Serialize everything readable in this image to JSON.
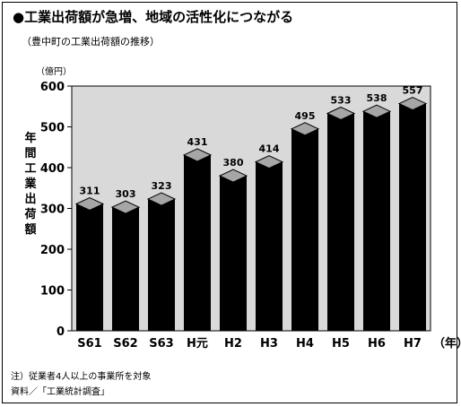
{
  "chart_data": {
    "type": "bar",
    "title": "●工業出荷額が急増、地域の活性化につながる",
    "subtitle": "（豊中町の工業出荷額の推移）",
    "unit_label": "（億円）",
    "ylabel": "年間工業出荷額",
    "xunit": "（年）",
    "categories": [
      "S61",
      "S62",
      "S63",
      "H元",
      "H2",
      "H3",
      "H4",
      "H5",
      "H6",
      "H7"
    ],
    "values": [
      311,
      303,
      323,
      431,
      380,
      414,
      495,
      533,
      538,
      557
    ],
    "ylim": [
      0,
      600
    ],
    "yticks": [
      0,
      100,
      200,
      300,
      400,
      500,
      600
    ],
    "grid": false,
    "plot_background": "#d9d9d9",
    "bar_color": "#000000",
    "bar_cap_color": "#a6a6a6"
  },
  "notes": [
    "注）従業者4人以上の事業所を対象",
    "資料／「工業統計調査」"
  ]
}
